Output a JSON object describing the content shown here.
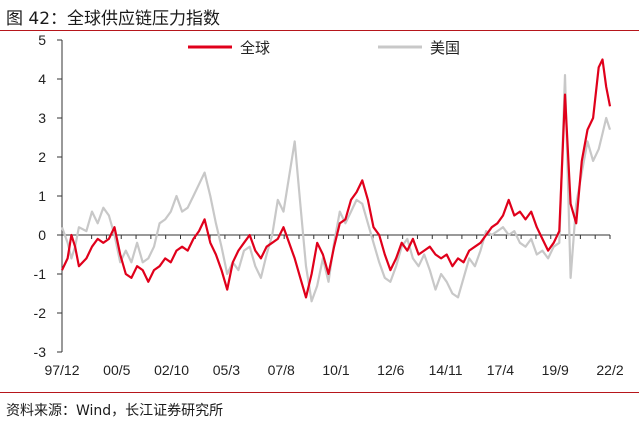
{
  "figure_title": "图 42：全球供应链压力指数",
  "source": "资料来源：Wind，长江证券研究所",
  "chart_data": {
    "type": "line",
    "title": "全球供应链压力指数",
    "xlabel": "",
    "ylabel": "",
    "ylim": [
      -3,
      5
    ],
    "yticks": [
      -3,
      -2,
      -1,
      0,
      1,
      2,
      3,
      4,
      5
    ],
    "x_start": "1997-12",
    "x_end": "2022-04",
    "x_tick_labels": [
      "97/12",
      "00/5",
      "02/10",
      "05/3",
      "07/8",
      "10/1",
      "12/6",
      "14/11",
      "17/4",
      "19/9",
      "22/2"
    ],
    "grid": false,
    "legend_position": "top",
    "series": [
      {
        "name": "全球",
        "color": "#e0001b",
        "values": [
          [
            "1997-12",
            -0.9
          ],
          [
            "1998-03",
            -0.6
          ],
          [
            "1998-05",
            0.0
          ],
          [
            "1998-07",
            -0.3
          ],
          [
            "1998-09",
            -0.8
          ],
          [
            "1999-01",
            -0.6
          ],
          [
            "1999-04",
            -0.3
          ],
          [
            "1999-07",
            -0.1
          ],
          [
            "1999-10",
            -0.2
          ],
          [
            "2000-01",
            -0.1
          ],
          [
            "2000-04",
            0.2
          ],
          [
            "2000-07",
            -0.5
          ],
          [
            "2000-10",
            -1.0
          ],
          [
            "2001-01",
            -1.1
          ],
          [
            "2001-04",
            -0.8
          ],
          [
            "2001-07",
            -0.9
          ],
          [
            "2001-10",
            -1.2
          ],
          [
            "2002-01",
            -0.9
          ],
          [
            "2002-04",
            -0.8
          ],
          [
            "2002-07",
            -0.6
          ],
          [
            "2002-10",
            -0.7
          ],
          [
            "2003-01",
            -0.4
          ],
          [
            "2003-04",
            -0.3
          ],
          [
            "2003-07",
            -0.4
          ],
          [
            "2003-10",
            -0.1
          ],
          [
            "2004-01",
            0.1
          ],
          [
            "2004-04",
            0.4
          ],
          [
            "2004-07",
            -0.2
          ],
          [
            "2004-10",
            -0.5
          ],
          [
            "2005-01",
            -0.9
          ],
          [
            "2005-04",
            -1.4
          ],
          [
            "2005-07",
            -0.7
          ],
          [
            "2005-10",
            -0.4
          ],
          [
            "2006-01",
            -0.2
          ],
          [
            "2006-04",
            0.0
          ],
          [
            "2006-07",
            -0.4
          ],
          [
            "2006-10",
            -0.6
          ],
          [
            "2007-01",
            -0.3
          ],
          [
            "2007-04",
            -0.2
          ],
          [
            "2007-07",
            -0.1
          ],
          [
            "2007-10",
            0.2
          ],
          [
            "2008-01",
            -0.2
          ],
          [
            "2008-04",
            -0.6
          ],
          [
            "2008-07",
            -1.1
          ],
          [
            "2008-10",
            -1.6
          ],
          [
            "2009-01",
            -1.0
          ],
          [
            "2009-04",
            -0.2
          ],
          [
            "2009-07",
            -0.5
          ],
          [
            "2009-10",
            -1.0
          ],
          [
            "2010-01",
            -0.3
          ],
          [
            "2010-04",
            0.3
          ],
          [
            "2010-07",
            0.4
          ],
          [
            "2010-10",
            0.9
          ],
          [
            "2011-01",
            1.1
          ],
          [
            "2011-04",
            1.4
          ],
          [
            "2011-07",
            0.9
          ],
          [
            "2011-10",
            0.2
          ],
          [
            "2012-01",
            0.0
          ],
          [
            "2012-04",
            -0.5
          ],
          [
            "2012-07",
            -0.9
          ],
          [
            "2012-10",
            -0.6
          ],
          [
            "2013-01",
            -0.2
          ],
          [
            "2013-04",
            -0.4
          ],
          [
            "2013-07",
            -0.1
          ],
          [
            "2013-10",
            -0.5
          ],
          [
            "2014-01",
            -0.4
          ],
          [
            "2014-04",
            -0.3
          ],
          [
            "2014-07",
            -0.5
          ],
          [
            "2014-10",
            -0.6
          ],
          [
            "2015-01",
            -0.5
          ],
          [
            "2015-04",
            -0.8
          ],
          [
            "2015-07",
            -0.6
          ],
          [
            "2015-10",
            -0.7
          ],
          [
            "2016-01",
            -0.4
          ],
          [
            "2016-04",
            -0.3
          ],
          [
            "2016-07",
            -0.2
          ],
          [
            "2016-10",
            0.0
          ],
          [
            "2017-01",
            0.2
          ],
          [
            "2017-04",
            0.3
          ],
          [
            "2017-07",
            0.5
          ],
          [
            "2017-10",
            0.9
          ],
          [
            "2018-01",
            0.5
          ],
          [
            "2018-04",
            0.6
          ],
          [
            "2018-07",
            0.4
          ],
          [
            "2018-10",
            0.6
          ],
          [
            "2019-01",
            0.2
          ],
          [
            "2019-04",
            -0.1
          ],
          [
            "2019-07",
            -0.4
          ],
          [
            "2019-10",
            -0.2
          ],
          [
            "2020-01",
            0.1
          ],
          [
            "2020-04",
            3.6
          ],
          [
            "2020-07",
            0.8
          ],
          [
            "2020-10",
            0.3
          ],
          [
            "2021-01",
            1.9
          ],
          [
            "2021-04",
            2.7
          ],
          [
            "2021-07",
            3.0
          ],
          [
            "2021-10",
            4.3
          ],
          [
            "2021-12",
            4.5
          ],
          [
            "2022-02",
            3.8
          ],
          [
            "2022-04",
            3.3
          ]
        ]
      },
      {
        "name": "美国",
        "color": "#c8c8c8",
        "values": [
          [
            "1997-12",
            0.2
          ],
          [
            "1998-03",
            -0.2
          ],
          [
            "1998-05",
            -0.6
          ],
          [
            "1998-07",
            -0.3
          ],
          [
            "1998-09",
            0.2
          ],
          [
            "1999-01",
            0.1
          ],
          [
            "1999-04",
            0.6
          ],
          [
            "1999-07",
            0.3
          ],
          [
            "1999-10",
            0.7
          ],
          [
            "2000-01",
            0.5
          ],
          [
            "2000-04",
            0.0
          ],
          [
            "2000-07",
            -0.7
          ],
          [
            "2000-10",
            -0.4
          ],
          [
            "2001-01",
            -0.7
          ],
          [
            "2001-04",
            -0.2
          ],
          [
            "2001-07",
            -0.7
          ],
          [
            "2001-10",
            -0.6
          ],
          [
            "2002-01",
            -0.3
          ],
          [
            "2002-04",
            0.3
          ],
          [
            "2002-07",
            0.4
          ],
          [
            "2002-10",
            0.6
          ],
          [
            "2003-01",
            1.0
          ],
          [
            "2003-04",
            0.6
          ],
          [
            "2003-07",
            0.7
          ],
          [
            "2003-10",
            1.0
          ],
          [
            "2004-01",
            1.3
          ],
          [
            "2004-04",
            1.6
          ],
          [
            "2004-07",
            1.0
          ],
          [
            "2004-10",
            0.3
          ],
          [
            "2005-01",
            -0.3
          ],
          [
            "2005-04",
            -1.0
          ],
          [
            "2005-07",
            -0.7
          ],
          [
            "2005-10",
            -0.9
          ],
          [
            "2006-01",
            -0.4
          ],
          [
            "2006-04",
            -0.3
          ],
          [
            "2006-07",
            -0.8
          ],
          [
            "2006-10",
            -1.1
          ],
          [
            "2007-01",
            -0.5
          ],
          [
            "2007-04",
            0.0
          ],
          [
            "2007-07",
            0.9
          ],
          [
            "2007-10",
            0.6
          ],
          [
            "2008-01",
            1.5
          ],
          [
            "2008-04",
            2.4
          ],
          [
            "2008-07",
            0.8
          ],
          [
            "2008-10",
            -0.8
          ],
          [
            "2009-01",
            -1.7
          ],
          [
            "2009-04",
            -1.3
          ],
          [
            "2009-07",
            -0.6
          ],
          [
            "2009-10",
            -1.2
          ],
          [
            "2010-01",
            -0.2
          ],
          [
            "2010-04",
            0.6
          ],
          [
            "2010-07",
            0.3
          ],
          [
            "2010-10",
            0.6
          ],
          [
            "2011-01",
            0.9
          ],
          [
            "2011-04",
            0.8
          ],
          [
            "2011-07",
            0.3
          ],
          [
            "2011-10",
            -0.2
          ],
          [
            "2012-01",
            -0.7
          ],
          [
            "2012-04",
            -1.1
          ],
          [
            "2012-07",
            -1.2
          ],
          [
            "2012-10",
            -0.8
          ],
          [
            "2013-01",
            -0.3
          ],
          [
            "2013-04",
            -0.1
          ],
          [
            "2013-07",
            -0.6
          ],
          [
            "2013-10",
            -0.8
          ],
          [
            "2014-01",
            -0.5
          ],
          [
            "2014-04",
            -0.9
          ],
          [
            "2014-07",
            -1.4
          ],
          [
            "2014-10",
            -1.0
          ],
          [
            "2015-01",
            -1.2
          ],
          [
            "2015-04",
            -1.5
          ],
          [
            "2015-07",
            -1.6
          ],
          [
            "2015-10",
            -1.1
          ],
          [
            "2016-01",
            -0.6
          ],
          [
            "2016-04",
            -0.8
          ],
          [
            "2016-07",
            -0.4
          ],
          [
            "2016-10",
            0.1
          ],
          [
            "2017-01",
            0.0
          ],
          [
            "2017-04",
            0.1
          ],
          [
            "2017-07",
            0.2
          ],
          [
            "2017-10",
            0.0
          ],
          [
            "2018-01",
            0.1
          ],
          [
            "2018-04",
            -0.2
          ],
          [
            "2018-07",
            -0.3
          ],
          [
            "2018-10",
            -0.1
          ],
          [
            "2019-01",
            -0.5
          ],
          [
            "2019-04",
            -0.4
          ],
          [
            "2019-07",
            -0.6
          ],
          [
            "2019-10",
            -0.3
          ],
          [
            "2020-01",
            -0.2
          ],
          [
            "2020-04",
            4.1
          ],
          [
            "2020-07",
            -1.1
          ],
          [
            "2020-10",
            0.8
          ],
          [
            "2021-01",
            1.6
          ],
          [
            "2021-04",
            2.4
          ],
          [
            "2021-07",
            1.9
          ],
          [
            "2021-10",
            2.2
          ],
          [
            "2021-12",
            2.6
          ],
          [
            "2022-02",
            3.0
          ],
          [
            "2022-04",
            2.7
          ]
        ]
      }
    ]
  }
}
